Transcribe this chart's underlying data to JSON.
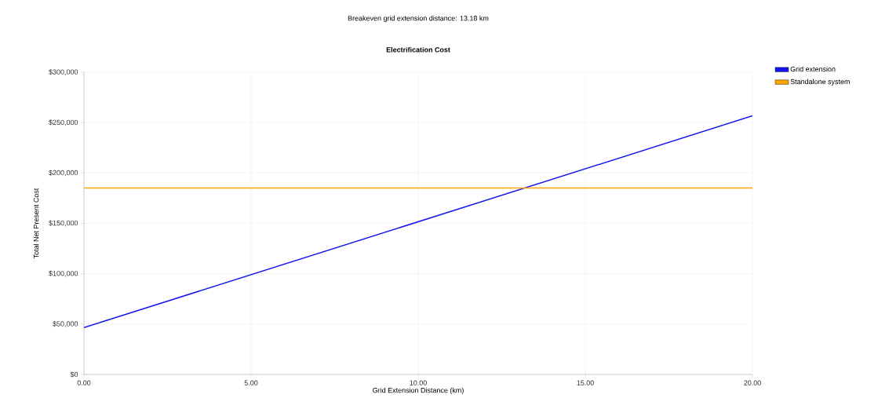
{
  "chart_data": {
    "type": "line",
    "title": "Electrification Cost",
    "annotations": [
      "Breakeven grid extension distance: 13.18 km"
    ],
    "xlabel": "Grid Extension Distance (km)",
    "ylabel": "Total Net Present Cost",
    "x": [
      0,
      20
    ],
    "series": [
      {
        "name": "Grid extension",
        "color": "#1414f0",
        "values": [
          46500,
          256700
        ]
      },
      {
        "name": "Standalone system",
        "color": "#ffa500",
        "values": [
          185000,
          185000
        ]
      }
    ],
    "xlim": [
      0,
      20
    ],
    "ylim": [
      0,
      300000
    ],
    "xticks": [
      {
        "value": 0,
        "label": "0.00"
      },
      {
        "value": 5,
        "label": "5.00"
      },
      {
        "value": 10,
        "label": "10.00"
      },
      {
        "value": 15,
        "label": "15.00"
      },
      {
        "value": 20,
        "label": "20.00"
      }
    ],
    "yticks": [
      {
        "value": 0,
        "label": "$0"
      },
      {
        "value": 50000,
        "label": "$50,000"
      },
      {
        "value": 100000,
        "label": "$100,000"
      },
      {
        "value": 150000,
        "label": "$150,000"
      },
      {
        "value": 200000,
        "label": "$200,000"
      },
      {
        "value": 250000,
        "label": "$250,000"
      },
      {
        "value": 300000,
        "label": "$300,000"
      }
    ],
    "grid": true,
    "legend": "top right"
  }
}
